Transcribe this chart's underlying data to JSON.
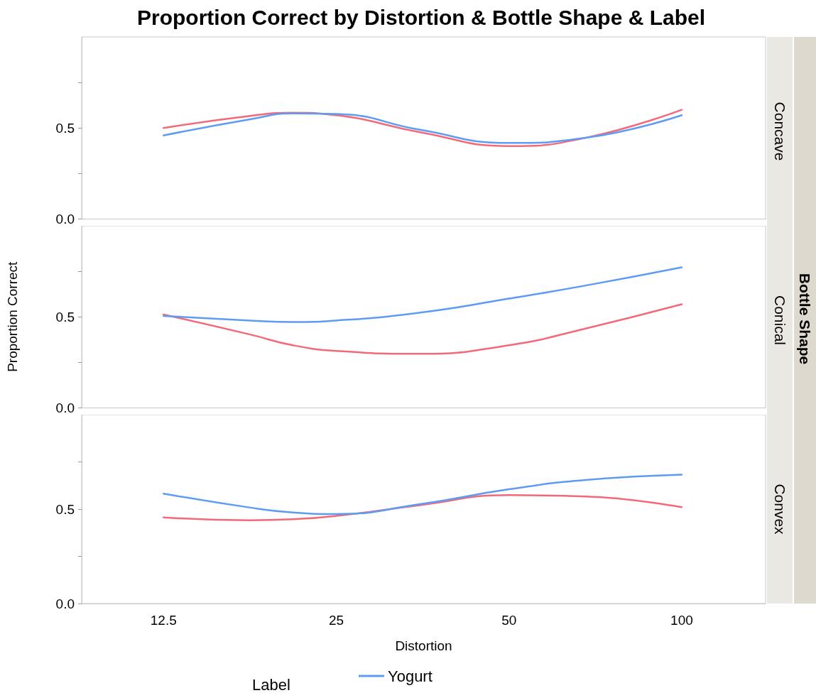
{
  "chart_data": [
    {
      "type": "line",
      "title": "Proportion Correct by Distortion & Bottle Shape & Label",
      "subtitle": "Concave",
      "x": [
        12.5,
        17.7,
        21,
        25,
        35,
        50,
        68,
        100
      ],
      "series": [
        {
          "color": "#f26a79",
          "values": [
            0.5,
            0.566,
            0.584,
            0.57,
            0.477,
            0.401,
            0.446,
            0.6
          ]
        },
        {
          "color": "#5d9cf2",
          "values": [
            0.459,
            0.548,
            0.58,
            0.577,
            0.49,
            0.418,
            0.446,
            0.57
          ]
        }
      ],
      "xlim": [
        9,
        140
      ],
      "ylim": [
        0,
        1
      ],
      "xticks": [
        12.5,
        25,
        50,
        100
      ],
      "yticks": [
        {
          "value": 0,
          "label": "0.0"
        },
        {
          "value": 0.25,
          "label": null
        },
        {
          "value": 0.5,
          "label": "0.5"
        },
        {
          "value": 0.75,
          "label": null
        }
      ],
      "log": "x",
      "tick_labels": "y",
      "marker": "none",
      "line_style": "solid"
    },
    {
      "type": "line",
      "subtitle": "Conical",
      "ylabel": "Proportion Correct",
      "annotations": [
        "Bottle Shape"
      ],
      "x": [
        12.5,
        17.7,
        21,
        25,
        35,
        50,
        68,
        100
      ],
      "series": [
        {
          "color": "#f26a79",
          "values": [
            0.513,
            0.403,
            0.344,
            0.313,
            0.297,
            0.344,
            0.436,
            0.569
          ]
        },
        {
          "color": "#5d9cf2",
          "values": [
            0.505,
            0.48,
            0.472,
            0.48,
            0.523,
            0.6,
            0.672,
            0.772
          ]
        }
      ],
      "xlim": [
        9,
        140
      ],
      "ylim": [
        0,
        1
      ],
      "xticks": [
        12.5,
        25,
        50,
        100
      ],
      "yticks": [
        {
          "value": 0,
          "label": "0.0"
        },
        {
          "value": 0.25,
          "label": null
        },
        {
          "value": 0.5,
          "label": "0.5"
        },
        {
          "value": 0.75,
          "label": null
        }
      ],
      "log": "x",
      "tick_labels": "y",
      "marker": "none",
      "line_style": "solid"
    },
    {
      "type": "line",
      "subtitle": "Convex",
      "xlabel": "Distortion",
      "legend_title": "Label",
      "x": [
        12.5,
        17.7,
        21,
        25,
        35,
        50,
        68,
        100
      ],
      "series": [
        {
          "color": "#f26a79",
          "values": [
            0.456,
            0.441,
            0.446,
            0.464,
            0.521,
            0.574,
            0.567,
            0.51
          ]
        },
        {
          "name": "Yogurt",
          "color": "#5d9cf2",
          "values": [
            0.582,
            0.508,
            0.482,
            0.474,
            0.526,
            0.605,
            0.654,
            0.682
          ]
        }
      ],
      "xlim": [
        9,
        140
      ],
      "ylim": [
        0,
        1
      ],
      "xticks": [
        12.5,
        25,
        50,
        100
      ],
      "yticks": [
        {
          "value": 0,
          "label": "0.0"
        },
        {
          "value": 0.25,
          "label": null
        },
        {
          "value": 0.5,
          "label": "0.5"
        },
        {
          "value": 0.75,
          "label": null
        }
      ],
      "log": "x",
      "legend": "bottom",
      "marker": "none",
      "line_style": "solid"
    }
  ]
}
